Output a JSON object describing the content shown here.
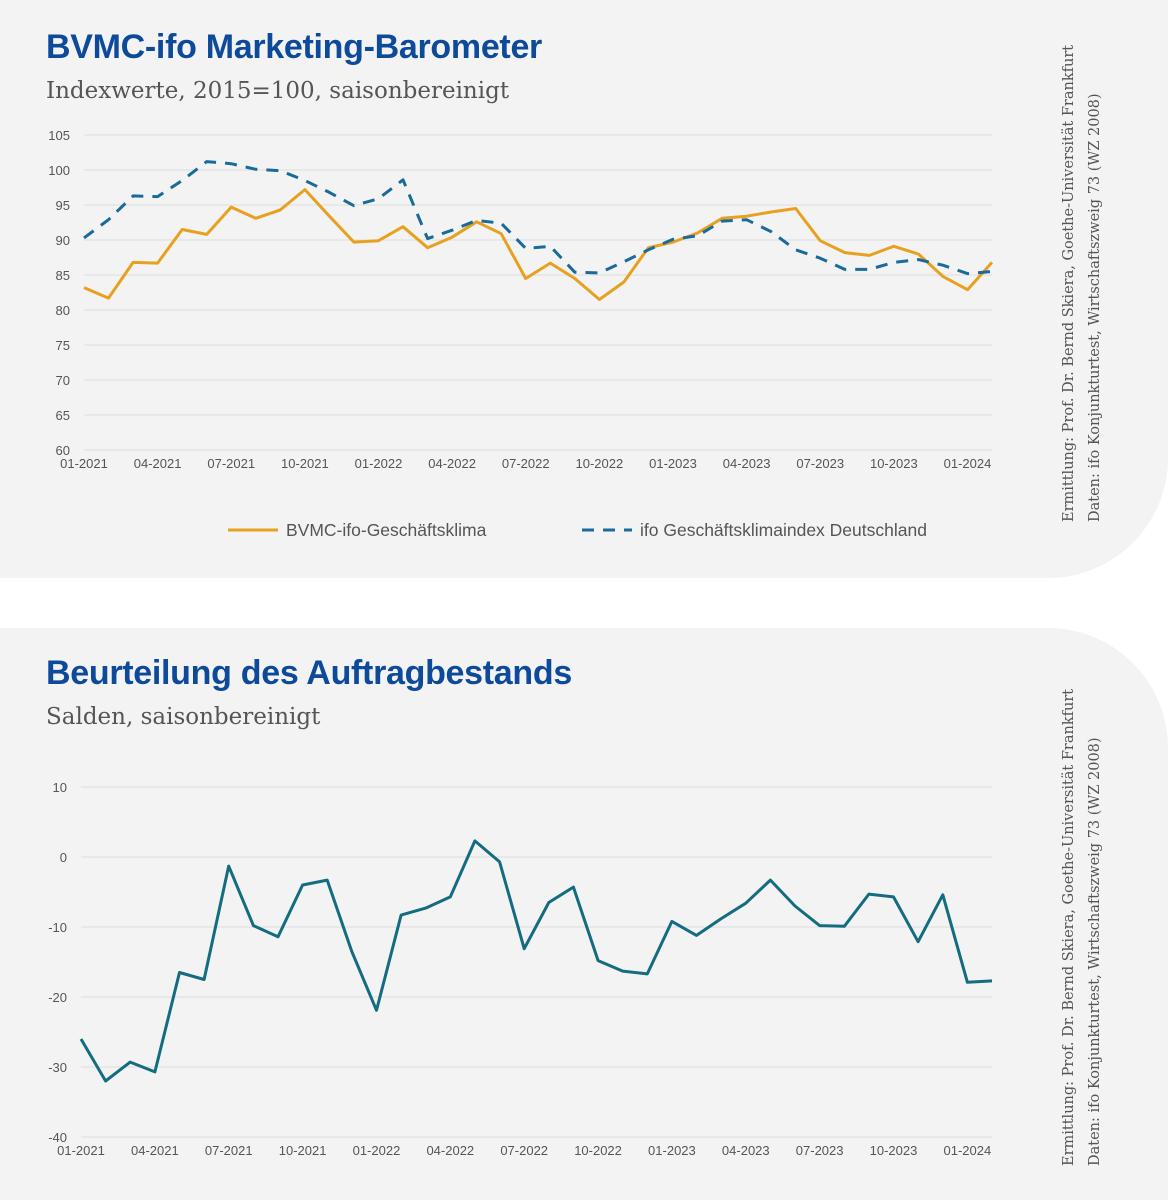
{
  "charts": [
    {
      "title": "BVMC-ifo Marketing-Barometer",
      "subtitle": "Indexwerte, 2015=100, saisonbereinigt",
      "source_line1": "Ermittlung: Prof. Dr. Bernd Skiera, Goethe-Universität Frankfurt",
      "source_line2": "Daten: ifo Konjunkturtest, Wirtschaftszweig 73 (WZ 2008)"
    },
    {
      "title": "Beurteilung des Auftragbestands",
      "subtitle": "Salden, saisonbereinigt",
      "source_line1": "Ermittlung: Prof. Dr. Bernd Skiera, Goethe-Universität Frankfurt",
      "source_line2": "Daten: ifo Konjunkturtest, Wirtschaftszweig 73 (WZ 2008)"
    }
  ],
  "colors": {
    "title": "#0d4a9a",
    "series_climate": "#e8a020",
    "series_ifo": "#1a6b9a",
    "series_orders": "#136c80",
    "grid": "#dcdcdc",
    "axis_text": "#555555"
  },
  "chart_data": [
    {
      "type": "line",
      "x_labels": [
        "01-2021",
        "02-2021",
        "03-2021",
        "04-2021",
        "05-2021",
        "06-2021",
        "07-2021",
        "08-2021",
        "09-2021",
        "10-2021",
        "11-2021",
        "12-2021",
        "01-2022",
        "02-2022",
        "03-2022",
        "04-2022",
        "05-2022",
        "06-2022",
        "07-2022",
        "08-2022",
        "09-2022",
        "10-2022",
        "11-2022",
        "12-2022",
        "01-2023",
        "02-2023",
        "03-2023",
        "04-2023",
        "05-2023",
        "06-2023",
        "07-2023",
        "08-2023",
        "09-2023",
        "10-2023",
        "11-2023",
        "12-2023",
        "01-2024",
        "02-2024"
      ],
      "tick_labels": [
        "01-2021",
        "04-2021",
        "07-2021",
        "10-2021",
        "01-2022",
        "04-2022",
        "07-2022",
        "10-2022",
        "01-2023",
        "04-2023",
        "07-2023",
        "10-2023",
        "01-2024"
      ],
      "ylim": [
        60,
        105
      ],
      "yticks": [
        60,
        65,
        70,
        75,
        80,
        85,
        90,
        95,
        100,
        105
      ],
      "grid": true,
      "legend": "bottom",
      "series": [
        {
          "name": "BVMC-ifo-Geschäftsklima",
          "style": "solid",
          "values": [
            83.2,
            81.7,
            86.8,
            86.7,
            91.5,
            90.8,
            94.7,
            93.1,
            94.3,
            97.2,
            93.4,
            89.7,
            89.9,
            91.9,
            88.9,
            90.4,
            92.6,
            90.9,
            84.5,
            86.7,
            84.5,
            81.5,
            84.0,
            88.9,
            89.7,
            91.0,
            93.1,
            93.4,
            94.0,
            94.5,
            89.9,
            88.2,
            87.8,
            89.1,
            88.0,
            84.8,
            82.9,
            86.8
          ]
        },
        {
          "name": "ifo Geschäftsklimaindex Deutschland",
          "style": "dashed",
          "values": [
            90.3,
            92.9,
            96.3,
            96.2,
            98.5,
            101.2,
            100.9,
            100.1,
            99.9,
            98.5,
            96.8,
            94.9,
            95.9,
            98.6,
            90.2,
            91.4,
            92.8,
            92.4,
            88.8,
            89.1,
            85.4,
            85.3,
            86.9,
            88.6,
            90.1,
            90.6,
            92.7,
            92.9,
            91.2,
            88.6,
            87.4,
            85.8,
            85.8,
            86.8,
            87.2,
            86.4,
            85.2,
            85.5
          ]
        }
      ]
    },
    {
      "type": "line",
      "x_labels": [
        "01-2021",
        "02-2021",
        "03-2021",
        "04-2021",
        "05-2021",
        "06-2021",
        "07-2021",
        "08-2021",
        "09-2021",
        "10-2021",
        "11-2021",
        "12-2021",
        "01-2022",
        "02-2022",
        "03-2022",
        "04-2022",
        "05-2022",
        "06-2022",
        "07-2022",
        "08-2022",
        "09-2022",
        "10-2022",
        "11-2022",
        "12-2022",
        "01-2023",
        "02-2023",
        "03-2023",
        "04-2023",
        "05-2023",
        "06-2023",
        "07-2023",
        "08-2023",
        "09-2023",
        "10-2023",
        "11-2023",
        "12-2023",
        "01-2024",
        "02-2024"
      ],
      "tick_labels": [
        "01-2021",
        "04-2021",
        "07-2021",
        "10-2021",
        "01-2022",
        "04-2022",
        "07-2022",
        "10-2022",
        "01-2023",
        "04-2023",
        "07-2023",
        "10-2023",
        "01-2024"
      ],
      "ylim": [
        -40,
        10
      ],
      "yticks": [
        -40,
        -30,
        -20,
        -10,
        0,
        10
      ],
      "grid": true,
      "series": [
        {
          "values": [
            -26.0,
            -32.0,
            -29.3,
            -30.7,
            -16.5,
            -17.5,
            -1.3,
            -9.8,
            -11.4,
            -4.0,
            -3.3,
            -13.5,
            -21.9,
            -8.3,
            -7.3,
            -5.7,
            2.3,
            -0.7,
            -13.1,
            -6.5,
            -4.3,
            -14.8,
            -16.3,
            -16.7,
            -9.2,
            -11.2,
            -8.8,
            -6.6,
            -3.3,
            -7.0,
            -9.8,
            -9.9,
            -5.3,
            -5.7,
            -12.1,
            -5.4,
            -17.9,
            -17.7
          ]
        }
      ]
    }
  ]
}
